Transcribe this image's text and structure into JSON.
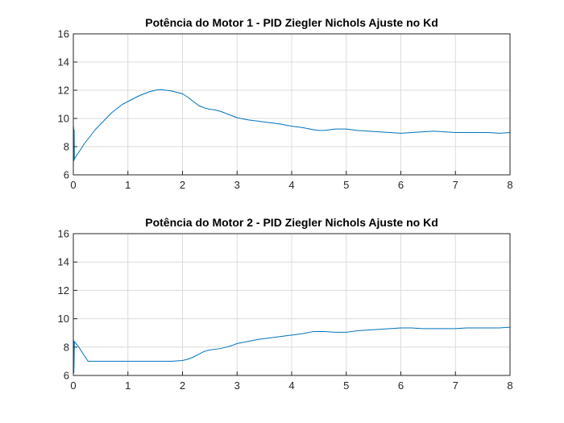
{
  "chart_data": [
    {
      "type": "line",
      "title": "Potência do Motor 1 - PID Ziegler Nichols Ajuste no Kd",
      "xlabel": "",
      "ylabel": "",
      "xlim": [
        0,
        8
      ],
      "ylim": [
        6,
        16
      ],
      "xticks": [
        0,
        1,
        2,
        3,
        4,
        5,
        6,
        7,
        8
      ],
      "yticks": [
        6,
        8,
        10,
        12,
        14,
        16
      ],
      "grid": true,
      "color": "#0072BD",
      "series": [
        {
          "x": [
            0,
            0.005,
            0.01,
            0.015,
            0.02,
            0.03,
            0.1,
            0.2,
            0.3,
            0.4,
            0.5,
            0.6,
            0.7,
            0.8,
            0.9,
            1.0,
            1.1,
            1.2,
            1.3,
            1.4,
            1.5,
            1.6,
            1.7,
            1.8,
            1.9,
            2.0,
            2.1,
            2.2,
            2.3,
            2.4,
            2.5,
            2.6,
            2.7,
            2.8,
            2.9,
            3.0,
            3.2,
            3.4,
            3.6,
            3.8,
            4.0,
            4.2,
            4.4,
            4.5,
            4.6,
            4.8,
            5.0,
            5.2,
            5.4,
            5.6,
            5.8,
            6.0,
            6.2,
            6.4,
            6.6,
            6.8,
            7.0,
            7.2,
            7.4,
            7.6,
            7.8,
            8.0
          ],
          "y": [
            6.6,
            9.4,
            7.0,
            9.2,
            7.1,
            7.2,
            7.6,
            8.2,
            8.7,
            9.2,
            9.6,
            10.0,
            10.4,
            10.7,
            11.0,
            11.2,
            11.4,
            11.6,
            11.75,
            11.9,
            12.0,
            12.05,
            12.0,
            11.95,
            11.85,
            11.75,
            11.5,
            11.2,
            10.9,
            10.75,
            10.65,
            10.6,
            10.5,
            10.35,
            10.2,
            10.05,
            9.9,
            9.8,
            9.7,
            9.6,
            9.45,
            9.35,
            9.2,
            9.15,
            9.15,
            9.25,
            9.25,
            9.15,
            9.1,
            9.05,
            9.0,
            8.95,
            9.0,
            9.05,
            9.1,
            9.05,
            9.0,
            9.0,
            9.0,
            9.0,
            8.95,
            9.0
          ]
        }
      ]
    },
    {
      "type": "line",
      "title": "Potência do Motor 2 - PID Ziegler Nichols Ajuste no Kd",
      "xlabel": "",
      "ylabel": "",
      "xlim": [
        0,
        8
      ],
      "ylim": [
        6,
        16
      ],
      "xticks": [
        0,
        1,
        2,
        3,
        4,
        5,
        6,
        7,
        8
      ],
      "yticks": [
        6,
        8,
        10,
        12,
        14,
        16
      ],
      "grid": true,
      "color": "#0072BD",
      "series": [
        {
          "x": [
            0,
            0.005,
            0.01,
            0.02,
            0.1,
            0.2,
            0.27,
            0.5,
            1.0,
            1.5,
            1.8,
            2.0,
            2.1,
            2.2,
            2.3,
            2.4,
            2.5,
            2.6,
            2.7,
            2.8,
            2.9,
            3.0,
            3.2,
            3.4,
            3.6,
            3.8,
            4.0,
            4.2,
            4.4,
            4.6,
            4.8,
            5.0,
            5.2,
            5.4,
            5.6,
            5.8,
            6.0,
            6.2,
            6.4,
            6.6,
            6.8,
            7.0,
            7.2,
            7.4,
            7.6,
            7.8,
            8.0
          ],
          "y": [
            6.0,
            8.5,
            6.2,
            8.4,
            8.0,
            7.4,
            7.0,
            7.0,
            7.0,
            7.0,
            7.0,
            7.05,
            7.15,
            7.3,
            7.5,
            7.7,
            7.8,
            7.85,
            7.9,
            8.0,
            8.1,
            8.25,
            8.4,
            8.55,
            8.65,
            8.75,
            8.85,
            8.95,
            9.1,
            9.1,
            9.05,
            9.05,
            9.15,
            9.2,
            9.25,
            9.3,
            9.35,
            9.35,
            9.3,
            9.3,
            9.3,
            9.3,
            9.35,
            9.35,
            9.35,
            9.35,
            9.4
          ]
        }
      ]
    }
  ]
}
